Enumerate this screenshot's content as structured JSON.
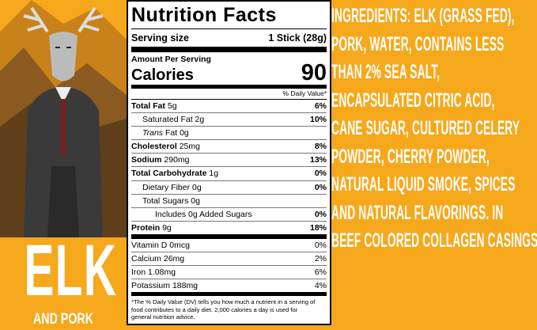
{
  "brand": {
    "name": "ELK",
    "subtitle": "AND PORK"
  },
  "nutrition": {
    "title": "Nutrition Facts",
    "serving_label": "Serving size",
    "serving_value": "1 Stick (28g)",
    "amount_per_serving": "Amount Per Serving",
    "calories_label": "Calories",
    "calories_value": "90",
    "dv_header": "% Daily Value*",
    "rows": [
      {
        "name": "Total Fat",
        "amount": "5g",
        "dv": "6%"
      },
      {
        "name": "Saturated Fat",
        "amount": "2g",
        "dv": "10%"
      },
      {
        "name_italic": "Trans",
        "name": "Fat",
        "amount": "0g"
      },
      {
        "name": "Cholesterol",
        "amount": "25mg",
        "dv": "8%"
      },
      {
        "name": "Sodium",
        "amount": "290mg",
        "dv": "13%"
      },
      {
        "name": "Total Carbohydrate",
        "amount": "1g",
        "dv": "0%"
      },
      {
        "name": "Dietary Fiber",
        "amount": "0g",
        "dv": "0%"
      },
      {
        "name": "Total Sugars",
        "amount": "0g"
      },
      {
        "name": "Includes 0g Added Sugars",
        "dv": "0%"
      },
      {
        "name": "Protein",
        "amount": "9g",
        "dv": "18%"
      }
    ],
    "vitamins": [
      {
        "name": "Vitamin D",
        "amount": "0mcg",
        "dv": "0%"
      },
      {
        "name": "Calcium",
        "amount": "26mg",
        "dv": "2%"
      },
      {
        "name": "Iron",
        "amount": "1.08mg",
        "dv": "6%"
      },
      {
        "name": "Potassium",
        "amount": "188mg",
        "dv": "4%"
      }
    ],
    "footnote": "*The % Daily Value (DV) tells you how much a nutrient in a serving of food contributes to a daily diet. 2,000 calories a day is used for general nutrition advice."
  },
  "ingredients": [
    "INGREDIENTS: ELK (GRASS FED),",
    "PORK, WATER, CONTAINS LESS",
    "THAN 2% SEA SALT,",
    "ENCAPSULATED CITRIC ACID,",
    "CANE SUGAR, CULTURED CELERY",
    "POWDER, CHERRY POWDER,",
    "NATURAL LIQUID SMOKE, SPICES",
    "AND NATURAL FLAVORINGS. IN",
    "BEEF COLORED COLLAGEN CASINGS."
  ]
}
